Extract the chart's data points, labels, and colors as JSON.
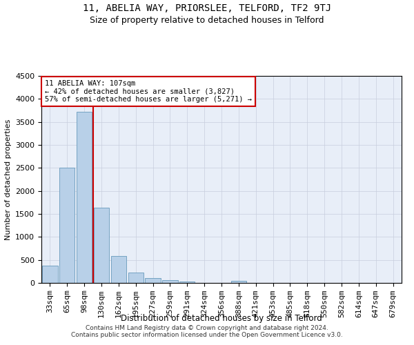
{
  "title": "11, ABELIA WAY, PRIORSLEE, TELFORD, TF2 9TJ",
  "subtitle": "Size of property relative to detached houses in Telford",
  "xlabel": "Distribution of detached houses by size in Telford",
  "ylabel": "Number of detached properties",
  "categories": [
    "33sqm",
    "65sqm",
    "98sqm",
    "130sqm",
    "162sqm",
    "195sqm",
    "227sqm",
    "259sqm",
    "291sqm",
    "324sqm",
    "356sqm",
    "388sqm",
    "421sqm",
    "453sqm",
    "485sqm",
    "518sqm",
    "550sqm",
    "582sqm",
    "614sqm",
    "647sqm",
    "679sqm"
  ],
  "values": [
    370,
    2500,
    3720,
    1630,
    580,
    230,
    105,
    60,
    35,
    0,
    0,
    50,
    0,
    0,
    0,
    0,
    0,
    0,
    0,
    0,
    0
  ],
  "bar_color": "#b8d0e8",
  "bar_edge_color": "#6699bb",
  "property_line_x": 2.5,
  "property_line_color": "#cc0000",
  "annotation_text": "11 ABELIA WAY: 107sqm\n← 42% of detached houses are smaller (3,827)\n57% of semi-detached houses are larger (5,271) →",
  "annotation_box_color": "#ffffff",
  "annotation_box_edge": "#cc0000",
  "ylim": [
    0,
    4500
  ],
  "yticks": [
    0,
    500,
    1000,
    1500,
    2000,
    2500,
    3000,
    3500,
    4000,
    4500
  ],
  "background_color": "#e8eef8",
  "grid_color": "#c8cedd",
  "footer": "Contains HM Land Registry data © Crown copyright and database right 2024.\nContains public sector information licensed under the Open Government Licence v3.0.",
  "title_fontsize": 10,
  "subtitle_fontsize": 9,
  "xlabel_fontsize": 8.5,
  "ylabel_fontsize": 8,
  "tick_fontsize": 8,
  "footer_fontsize": 6.5,
  "annotation_fontsize": 7.5
}
